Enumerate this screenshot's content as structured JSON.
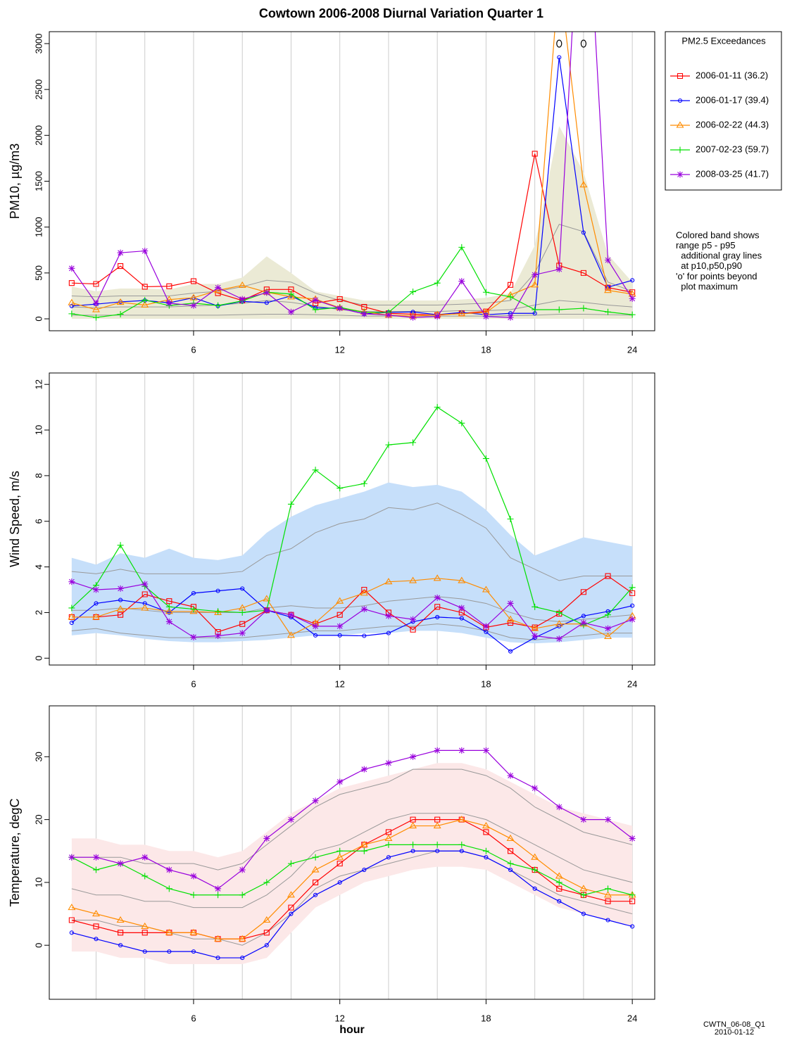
{
  "title": "Cowtown 2006-2008 Diurnal Variation Quarter 1",
  "legend": {
    "title": "PM2.5 Exceedances"
  },
  "note": [
    "Colored band shows",
    "range p5 - p95",
    "  additional gray lines",
    "  at p10,p50,p90",
    "'o' for points beyond",
    "  plot maximum"
  ],
  "footer": [
    "CWTN_06-08_Q1",
    "2010-01-12"
  ],
  "chart_data": [
    {
      "type": "line",
      "ylabel": "PM10, µg/m3",
      "x": [
        1,
        2,
        3,
        4,
        5,
        6,
        7,
        8,
        9,
        10,
        11,
        12,
        13,
        14,
        15,
        16,
        17,
        18,
        19,
        20,
        21,
        22,
        23,
        24
      ],
      "xlim": [
        0.08,
        24.92
      ],
      "xticks": [
        6,
        12,
        18,
        24
      ],
      "xgrid": [
        2,
        4,
        6,
        8,
        10,
        12,
        14,
        16,
        18,
        20,
        22,
        24
      ],
      "ylim": [
        -130,
        3130
      ],
      "yticks": [
        0,
        500,
        1000,
        1500,
        2000,
        2500,
        3000
      ],
      "band": {
        "color": "#ebead5",
        "upper": [
          350,
          300,
          330,
          330,
          320,
          380,
          380,
          450,
          680,
          500,
          300,
          250,
          200,
          200,
          200,
          200,
          210,
          230,
          280,
          800,
          2100,
          1600,
          700,
          400
        ],
        "lower": [
          0,
          0,
          0,
          0,
          0,
          0,
          0,
          0,
          0,
          0,
          0,
          0,
          0,
          0,
          0,
          0,
          0,
          0,
          0,
          0,
          0,
          0,
          0,
          0
        ]
      },
      "percentile_lines": {
        "color": "#999999",
        "lines": [
          [
            40,
            40,
            40,
            40,
            40,
            40,
            40,
            45,
            50,
            50,
            45,
            40,
            30,
            30,
            30,
            30,
            30,
            30,
            35,
            40,
            50,
            50,
            45,
            40
          ],
          [
            130,
            120,
            130,
            130,
            130,
            140,
            150,
            170,
            200,
            180,
            140,
            100,
            80,
            80,
            80,
            80,
            90,
            90,
            100,
            150,
            200,
            180,
            150,
            130
          ],
          [
            250,
            240,
            250,
            250,
            250,
            280,
            300,
            350,
            420,
            400,
            280,
            200,
            150,
            150,
            150,
            150,
            160,
            170,
            200,
            500,
            1030,
            950,
            400,
            300
          ]
        ]
      },
      "series": [
        {
          "name": "2006-01-11 (36.2)",
          "color": "#ff0000",
          "marker": "square",
          "values": [
            390,
            380,
            575,
            350,
            355,
            410,
            280,
            200,
            320,
            320,
            170,
            215,
            130,
            60,
            50,
            40,
            60,
            80,
            370,
            1800,
            580,
            500,
            340,
            290
          ]
        },
        {
          "name": "2006-01-17 (39.4)",
          "color": "#0000ff",
          "marker": "circle",
          "values": [
            140,
            160,
            185,
            200,
            175,
            230,
            140,
            190,
            175,
            250,
            120,
            115,
            55,
            70,
            75,
            45,
            70,
            45,
            60,
            60,
            2850,
            940,
            345,
            420
          ]
        },
        {
          "name": "2006-02-22 (44.3)",
          "color": "#ff8c00",
          "marker": "triangle",
          "values": [
            175,
            100,
            180,
            150,
            210,
            230,
            310,
            365,
            290,
            240,
            215,
            120,
            75,
            40,
            30,
            45,
            55,
            70,
            260,
            370,
            3750,
            1460,
            310,
            270
          ]
        },
        {
          "name": "2007-02-23 (59.7)",
          "color": "#00e000",
          "marker": "plus",
          "values": [
            55,
            15,
            50,
            205,
            145,
            170,
            145,
            195,
            290,
            270,
            100,
            125,
            70,
            70,
            295,
            390,
            780,
            290,
            240,
            100,
            100,
            115,
            75,
            45
          ]
        },
        {
          "name": "2008-03-25 (41.7)",
          "color": "#9900dd",
          "marker": "star",
          "values": [
            550,
            170,
            720,
            740,
            170,
            145,
            340,
            215,
            285,
            75,
            205,
            115,
            55,
            40,
            15,
            25,
            410,
            25,
            15,
            480,
            540,
            5400,
            640,
            220
          ]
        }
      ]
    },
    {
      "type": "line",
      "ylabel": "Wind Speed, m/s",
      "x": [
        1,
        2,
        3,
        4,
        5,
        6,
        7,
        8,
        9,
        10,
        11,
        12,
        13,
        14,
        15,
        16,
        17,
        18,
        19,
        20,
        21,
        22,
        23,
        24
      ],
      "xlim": [
        0.08,
        24.92
      ],
      "xticks": [
        6,
        12,
        18,
        24
      ],
      "xgrid": [
        2,
        4,
        6,
        8,
        10,
        12,
        14,
        16,
        18,
        20,
        22,
        24
      ],
      "ylim": [
        -0.3,
        12.5
      ],
      "yticks": [
        0,
        2,
        4,
        6,
        8,
        10,
        12
      ],
      "band": {
        "color": "#c6dffa",
        "upper": [
          4.4,
          4.1,
          4.6,
          4.4,
          4.8,
          4.4,
          4.3,
          4.5,
          5.5,
          6.2,
          6.7,
          7.0,
          7.3,
          7.7,
          7.5,
          7.6,
          7.3,
          6.5,
          5.4,
          4.5,
          4.9,
          5.3,
          5.1,
          4.9
        ],
        "lower": [
          1.0,
          1.1,
          1.0,
          0.85,
          0.75,
          0.7,
          0.7,
          0.75,
          0.8,
          0.9,
          1.0,
          1.0,
          1.1,
          1.1,
          1.2,
          1.2,
          1.1,
          0.9,
          0.7,
          0.65,
          0.7,
          0.8,
          0.9,
          0.9
        ]
      },
      "percentile_lines": {
        "color": "#999999",
        "lines": [
          [
            1.2,
            1.3,
            1.1,
            1.0,
            0.9,
            0.9,
            0.9,
            0.9,
            1.0,
            1.1,
            1.2,
            1.2,
            1.3,
            1.4,
            1.4,
            1.5,
            1.4,
            1.2,
            0.9,
            0.8,
            0.9,
            1.0,
            1.1,
            1.1
          ],
          [
            2.1,
            2.1,
            2.2,
            2.1,
            2.0,
            2.0,
            2.0,
            2.0,
            2.2,
            2.3,
            2.2,
            2.2,
            2.3,
            2.5,
            2.6,
            2.7,
            2.6,
            2.4,
            2.0,
            1.7,
            1.6,
            1.7,
            1.8,
            1.9
          ],
          [
            3.8,
            3.7,
            3.9,
            3.7,
            3.7,
            3.7,
            3.7,
            3.8,
            4.5,
            4.8,
            5.5,
            5.9,
            6.1,
            6.6,
            6.5,
            6.8,
            6.3,
            5.7,
            4.4,
            3.9,
            3.4,
            3.6,
            3.6,
            3.6
          ]
        ]
      },
      "series": [
        {
          "color": "#ff0000",
          "marker": "square",
          "values": [
            1.8,
            1.8,
            1.9,
            2.8,
            2.5,
            2.25,
            1.15,
            1.5,
            2.1,
            1.9,
            1.5,
            1.9,
            3.0,
            2.0,
            1.25,
            2.25,
            2.0,
            1.35,
            1.55,
            1.35,
            1.95,
            2.9,
            3.6,
            2.85
          ]
        },
        {
          "color": "#0000ff",
          "marker": "circle",
          "values": [
            1.55,
            2.4,
            2.55,
            2.4,
            2.0,
            2.85,
            2.95,
            3.05,
            2.1,
            1.8,
            1.0,
            1.0,
            0.98,
            1.1,
            1.6,
            1.8,
            1.75,
            1.15,
            0.3,
            0.9,
            1.4,
            1.85,
            2.05,
            2.3
          ]
        },
        {
          "color": "#ff8c00",
          "marker": "triangle",
          "values": [
            1.8,
            1.8,
            2.15,
            2.2,
            2.05,
            2.05,
            2.0,
            2.2,
            2.6,
            1.0,
            1.55,
            2.5,
            2.85,
            3.35,
            3.4,
            3.5,
            3.4,
            3.0,
            1.7,
            1.3,
            1.5,
            1.5,
            0.95,
            1.85
          ]
        },
        {
          "color": "#00e000",
          "marker": "plus",
          "values": [
            2.2,
            3.2,
            4.95,
            3.15,
            2.25,
            2.15,
            2.05,
            2.0,
            2.1,
            6.75,
            8.25,
            7.45,
            7.65,
            9.35,
            9.45,
            11.0,
            10.3,
            8.75,
            6.1,
            2.25,
            2.0,
            1.45,
            1.9,
            3.1
          ]
        },
        {
          "color": "#9900dd",
          "marker": "star",
          "values": [
            3.35,
            3.0,
            3.05,
            3.25,
            1.6,
            0.92,
            0.98,
            1.1,
            2.1,
            1.9,
            1.4,
            1.4,
            2.15,
            1.85,
            1.7,
            2.65,
            2.2,
            1.4,
            2.4,
            0.98,
            0.85,
            1.55,
            1.3,
            1.7
          ]
        }
      ]
    },
    {
      "type": "line",
      "ylabel": "Temperature, degC",
      "xlabel": "hour",
      "x": [
        1,
        2,
        3,
        4,
        5,
        6,
        7,
        8,
        9,
        10,
        11,
        12,
        13,
        14,
        15,
        16,
        17,
        18,
        19,
        20,
        21,
        22,
        23,
        24
      ],
      "xlim": [
        0.08,
        24.92
      ],
      "xticks": [
        6,
        12,
        18,
        24
      ],
      "xgrid": [
        2,
        4,
        6,
        8,
        10,
        12,
        14,
        16,
        18,
        20,
        22,
        24
      ],
      "ylim": [
        -8.6,
        38.1
      ],
      "yticks": [
        0,
        10,
        20,
        30
      ],
      "band": {
        "color": "#fce8e8",
        "upper": [
          17,
          17,
          16,
          16,
          15,
          15,
          14,
          15,
          18,
          21,
          23,
          25,
          26,
          27,
          28,
          29,
          29,
          28,
          26,
          24,
          22,
          21,
          20,
          19
        ],
        "lower": [
          -1,
          -1,
          -2,
          -2,
          -3,
          -3,
          -3,
          -3,
          -2,
          2,
          6,
          8,
          10,
          11,
          12,
          12.5,
          12.5,
          12,
          10,
          8,
          6,
          5,
          4,
          3
        ]
      },
      "percentile_lines": {
        "color": "#999999",
        "lines": [
          [
            4,
            4,
            3,
            3,
            2,
            1,
            1,
            0,
            2,
            5,
            9,
            11,
            12,
            13,
            14,
            15,
            15,
            14,
            12,
            10,
            8,
            7,
            6,
            5
          ],
          [
            9,
            8,
            8,
            7,
            7,
            6,
            6,
            6,
            8,
            11,
            15,
            16,
            18,
            20,
            21,
            21,
            21,
            20,
            18,
            16,
            14,
            12,
            11,
            10
          ],
          [
            14,
            14,
            14,
            13,
            13,
            13,
            12,
            13,
            16,
            19,
            22,
            24,
            25,
            26,
            28,
            28,
            28,
            27,
            25,
            22,
            20,
            18,
            17,
            16
          ]
        ]
      },
      "series": [
        {
          "color": "#ff0000",
          "marker": "square",
          "values": [
            4,
            3,
            2,
            2,
            2,
            2,
            1,
            1,
            2,
            6,
            10,
            13,
            16,
            18,
            20,
            20,
            20,
            18,
            15,
            12,
            9,
            8,
            7,
            7
          ]
        },
        {
          "color": "#0000ff",
          "marker": "circle",
          "values": [
            2,
            1,
            0,
            -1,
            -1,
            -1,
            -2,
            -2,
            0,
            5,
            8,
            10,
            12,
            14,
            15,
            15,
            15,
            14,
            12,
            9,
            7,
            5,
            4,
            3
          ]
        },
        {
          "color": "#ff8c00",
          "marker": "triangle",
          "values": [
            6,
            5,
            4,
            3,
            2,
            2,
            1,
            1,
            4,
            8,
            12,
            14,
            16,
            17,
            19,
            19,
            20,
            19,
            17,
            14,
            11,
            9,
            8,
            8
          ]
        },
        {
          "color": "#00e000",
          "marker": "plus",
          "values": [
            14,
            12,
            13,
            11,
            9,
            8,
            8,
            8,
            10,
            13,
            14,
            15,
            15,
            16,
            16,
            16,
            16,
            15,
            13,
            12,
            10,
            8,
            9,
            8
          ]
        },
        {
          "color": "#9900dd",
          "marker": "star",
          "values": [
            14,
            14,
            13,
            14,
            12,
            11,
            9,
            12,
            17,
            20,
            23,
            26,
            28,
            29,
            30,
            31,
            31,
            31,
            27,
            25,
            22,
            20,
            20,
            17
          ]
        }
      ]
    }
  ]
}
